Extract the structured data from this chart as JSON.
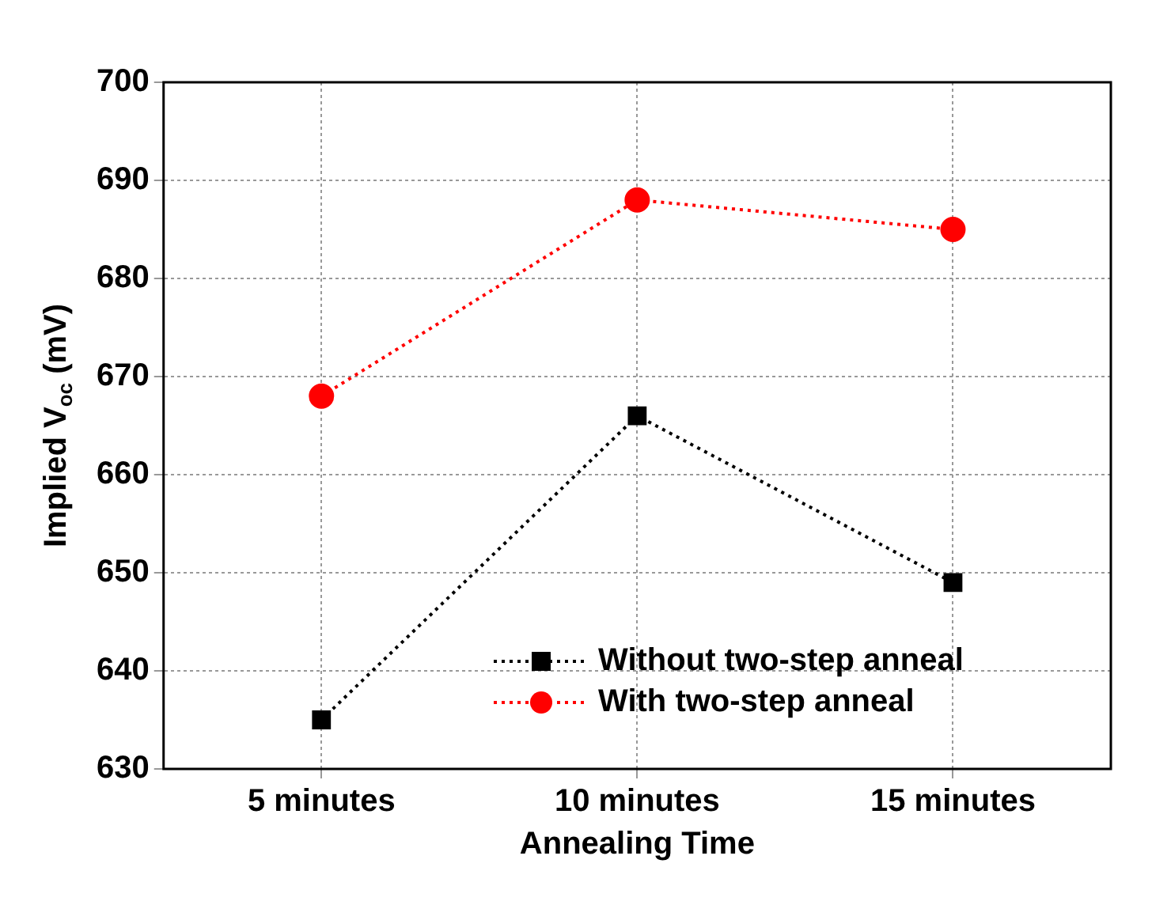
{
  "chart_data": {
    "type": "line",
    "xlabel": "Annealing Time",
    "ylabel": "Implied V$_{oc}$ (mV)",
    "categories": [
      "5 minutes",
      "10 minutes",
      "15 minutes"
    ],
    "series": [
      {
        "name": "Without two-step anneal",
        "color": "#000000",
        "marker": "square",
        "values": [
          635,
          666,
          649
        ]
      },
      {
        "name": "With two-step anneal",
        "color": "#ff0000",
        "marker": "circle",
        "values": [
          668,
          688,
          685
        ]
      }
    ],
    "ylim": [
      630,
      700
    ],
    "yticks": [
      630,
      640,
      650,
      660,
      670,
      680,
      690,
      700
    ],
    "grid": true,
    "legend": "bottom right",
    "line_style": "dotted"
  }
}
